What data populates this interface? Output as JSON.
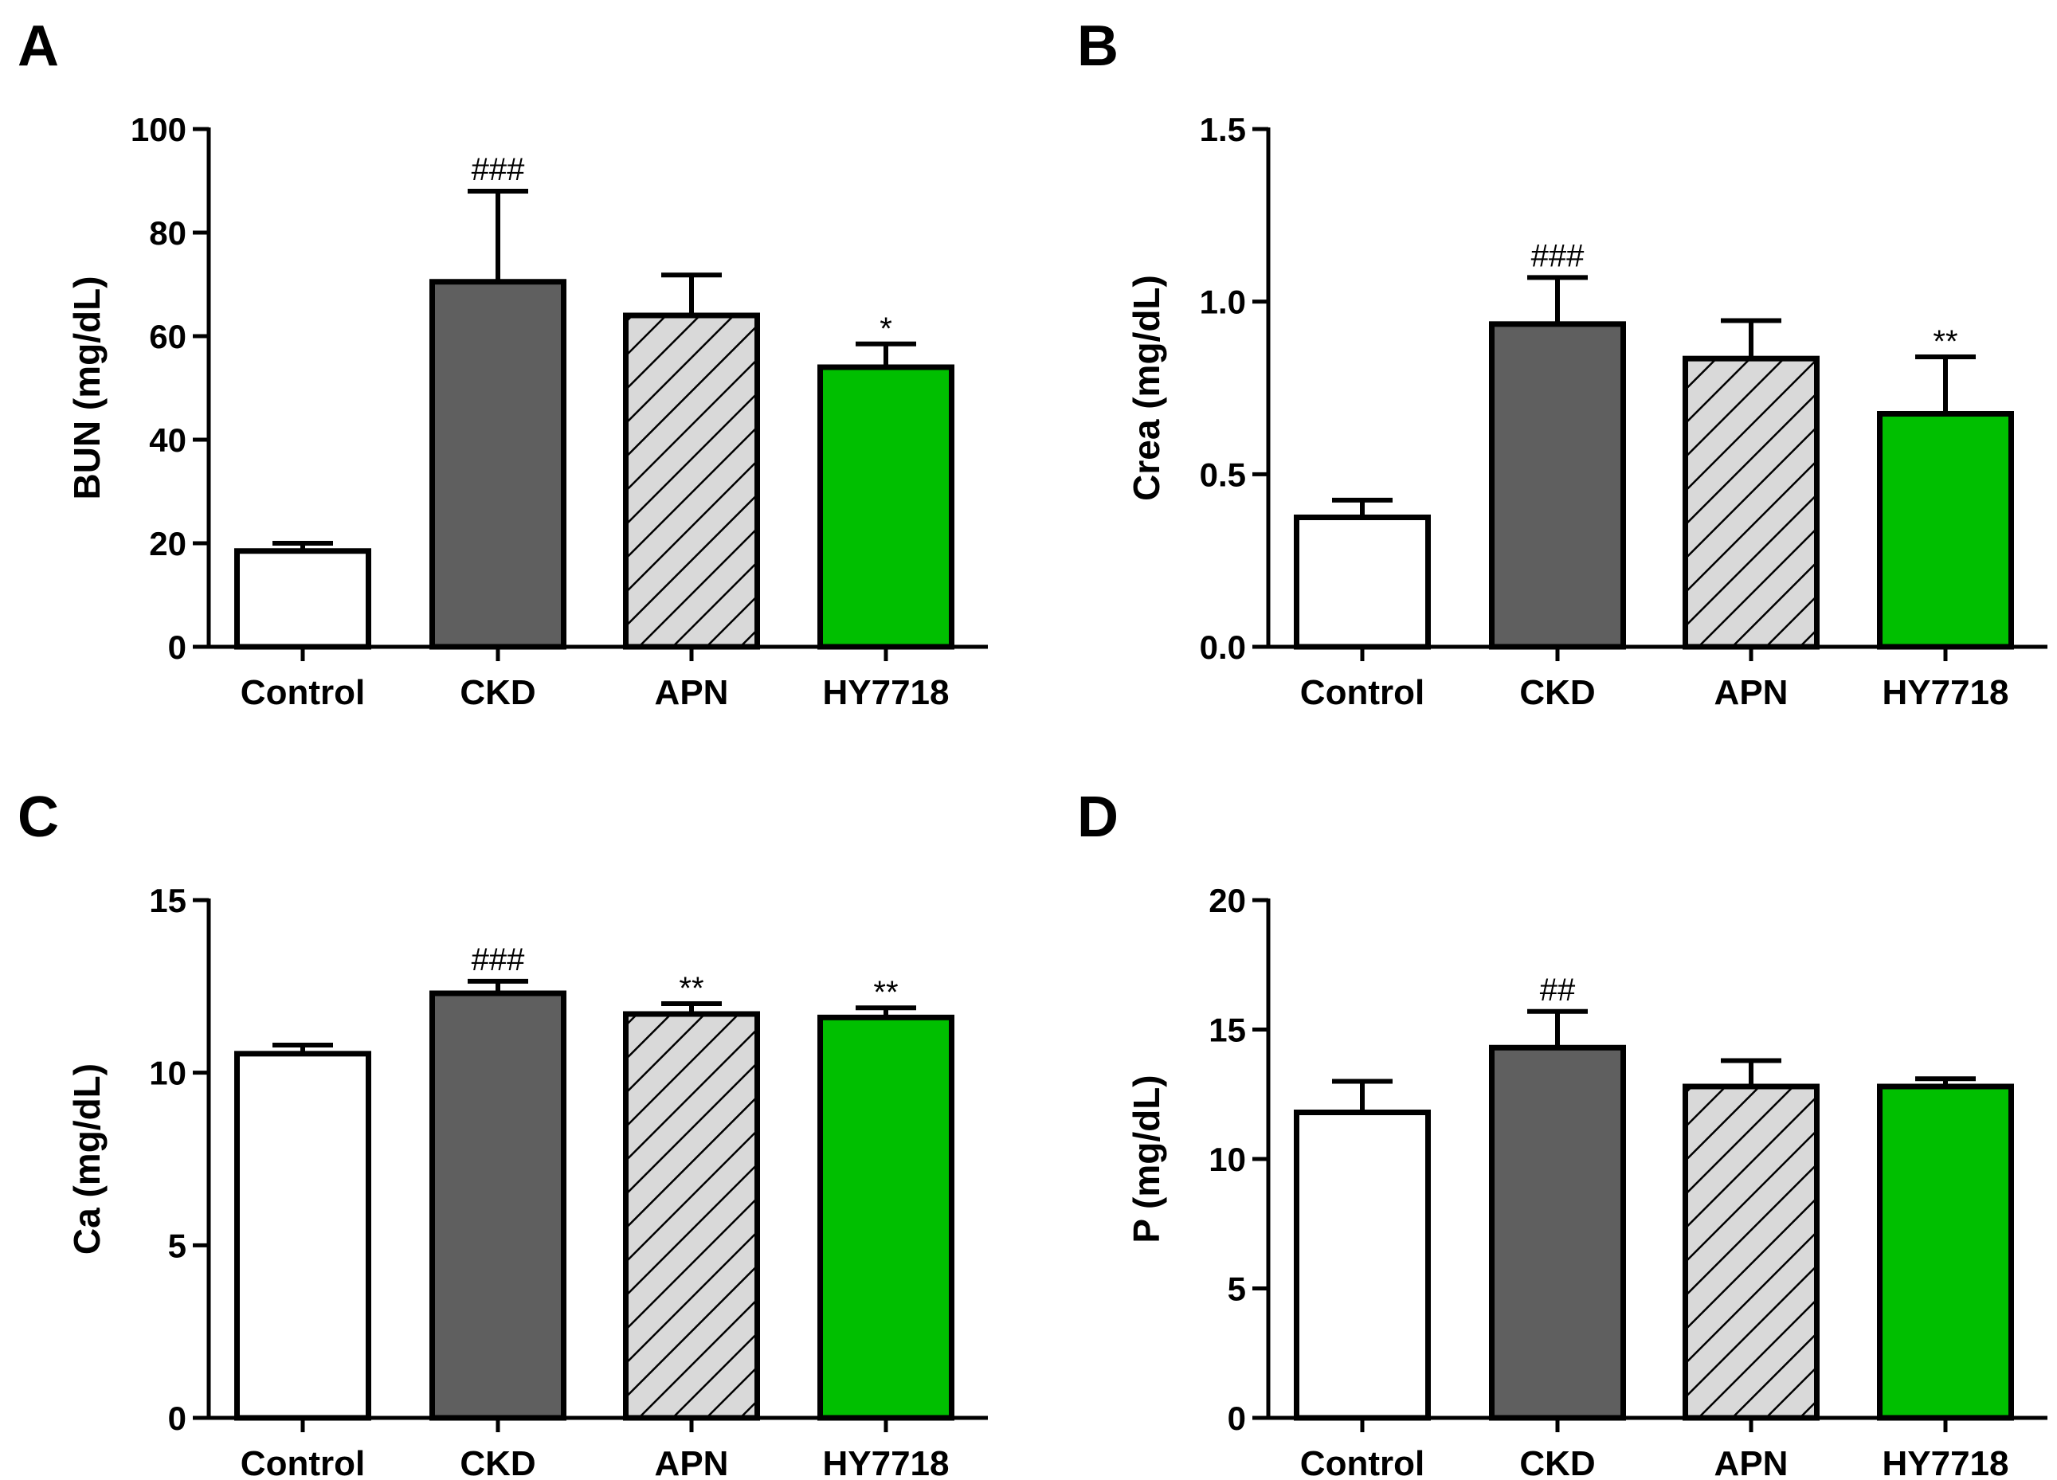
{
  "colors": {
    "control": "#ffffff",
    "ckd": "#5f5f5f",
    "apn": "#d9d9d9",
    "hy7718": "#00bf00",
    "stroke": "#000000"
  },
  "chart_data": [
    {
      "panel": "A",
      "type": "bar",
      "categories": [
        "Control",
        "CKD",
        "APN",
        "HY7718"
      ],
      "values": [
        18.5,
        70.5,
        64,
        54
      ],
      "errors": [
        1.5,
        17.5,
        7.8,
        4.5
      ],
      "annotations": [
        "",
        "###",
        "",
        "*"
      ],
      "ylabel": "BUN (mg/dL)",
      "ylim": [
        0,
        100
      ],
      "yticks": [
        0,
        20,
        40,
        60,
        80,
        100
      ],
      "ytick_labels": [
        "0",
        "20",
        "40",
        "60",
        "80",
        "100"
      ]
    },
    {
      "panel": "B",
      "type": "bar",
      "categories": [
        "Control",
        "CKD",
        "APN",
        "HY7718"
      ],
      "values": [
        0.375,
        0.935,
        0.835,
        0.675
      ],
      "errors": [
        0.05,
        0.135,
        0.11,
        0.165
      ],
      "annotations": [
        "",
        "###",
        "",
        "**"
      ],
      "ylabel": "Crea (mg/dL)",
      "ylim": [
        0,
        1.5
      ],
      "yticks": [
        0,
        0.5,
        1.0,
        1.5
      ],
      "ytick_labels": [
        "0.0",
        "0.5",
        "1.0",
        "1.5"
      ]
    },
    {
      "panel": "C",
      "type": "bar",
      "categories": [
        "Control",
        "CKD",
        "APN",
        "HY7718"
      ],
      "values": [
        10.55,
        12.3,
        11.7,
        11.6
      ],
      "errors": [
        0.25,
        0.35,
        0.3,
        0.28
      ],
      "annotations": [
        "",
        "###",
        "**",
        "**"
      ],
      "ylabel": "Ca (mg/dL)",
      "ylim": [
        0,
        15
      ],
      "yticks": [
        0,
        5,
        10,
        15
      ],
      "ytick_labels": [
        "0",
        "5",
        "10",
        "15"
      ]
    },
    {
      "panel": "D",
      "type": "bar",
      "categories": [
        "Control",
        "CKD",
        "APN",
        "HY7718"
      ],
      "values": [
        11.8,
        14.3,
        12.8,
        12.8
      ],
      "errors": [
        1.2,
        1.4,
        1.0,
        0.3
      ],
      "annotations": [
        "",
        "##",
        "",
        ""
      ],
      "ylabel": "P (mg/dL)",
      "ylim": [
        0,
        20
      ],
      "yticks": [
        0,
        5,
        10,
        15,
        20
      ],
      "ytick_labels": [
        "0",
        "5",
        "10",
        "15",
        "20"
      ]
    }
  ]
}
